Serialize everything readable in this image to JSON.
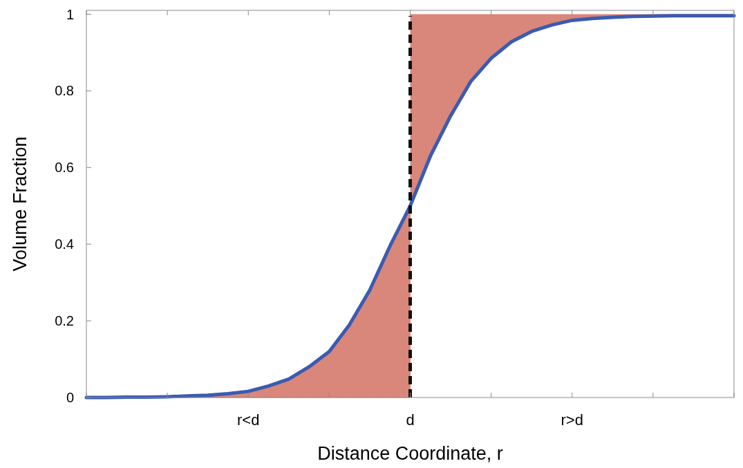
{
  "chart_data": {
    "type": "line",
    "xlabel": "Distance Coordinate, r",
    "ylabel": "Volume Fraction",
    "categories": [
      null,
      null,
      null,
      null,
      null,
      null,
      null,
      null,
      "r<d",
      null,
      null,
      null,
      null,
      null,
      null,
      null,
      "d",
      null,
      null,
      null,
      null,
      null,
      null,
      null,
      "r>d",
      null,
      null,
      null,
      null,
      null,
      null,
      null,
      null
    ],
    "ylim": [
      0,
      1.01
    ],
    "yticks": [
      0,
      0.2,
      0.4,
      0.6,
      0.8,
      1
    ],
    "grid": false,
    "marker": "none",
    "line_style": "solid",
    "series": [
      {
        "type": "area",
        "color": "#d9867b",
        "values": [
          0,
          0,
          0.001,
          0.001,
          0.002,
          0.004,
          0.006,
          0.01,
          0.016,
          0.03,
          0.048,
          0.08,
          0.12,
          0.19,
          0.28,
          0.395,
          0.5,
          null,
          null,
          null,
          null,
          null,
          null,
          null,
          null,
          null,
          null,
          null,
          null,
          null,
          null,
          null,
          null
        ]
      },
      {
        "color": "#3a5bb0",
        "values": [
          0,
          0,
          0.001,
          0.001,
          0.002,
          0.004,
          0.006,
          0.01,
          0.016,
          0.03,
          0.048,
          0.08,
          0.12,
          0.19,
          0.28,
          0.395,
          0.5,
          0.63,
          0.735,
          0.825,
          0.885,
          0.928,
          0.955,
          0.972,
          0.984,
          0.989,
          0.992,
          0.994,
          0.995,
          0.996,
          0.996,
          0.996,
          0.996
        ],
        "lower": [
          null,
          null,
          null,
          null,
          null,
          null,
          null,
          null,
          null,
          null,
          null,
          null,
          null,
          null,
          null,
          null,
          0.5,
          0.63,
          0.735,
          0.825,
          0.885,
          0.928,
          0.955,
          0.972,
          0.984,
          0.989,
          0.992,
          0.994,
          0.995,
          0.996,
          0.996,
          0.996,
          0.996
        ],
        "upper": [
          null,
          null,
          null,
          null,
          null,
          null,
          null,
          null,
          null,
          null,
          null,
          null,
          null,
          null,
          null,
          null,
          1,
          1,
          1,
          1,
          1,
          1,
          1,
          1,
          1,
          1,
          1,
          1,
          1,
          1,
          1,
          1,
          1
        ]
      }
    ],
    "ref_lines": [
      {
        "axis": "x",
        "value": "d",
        "color": "#111111",
        "line_style": "dashed"
      }
    ]
  }
}
